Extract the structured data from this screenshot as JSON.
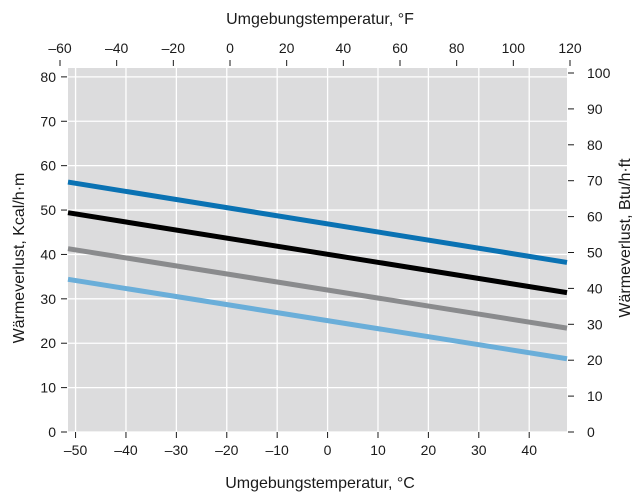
{
  "chart_data": {
    "type": "line",
    "title": "",
    "xlabel": "Umgebungstemperatur, °C",
    "xlabel_top": "Umgebungstemperatur, °F",
    "ylabel": "Wärmeverlust, Kcal/h·m",
    "ylabel_right": "Wärmeverlust, Btu/h·ft",
    "xlim": [
      -51.5,
      47.5
    ],
    "ylim": [
      0,
      82
    ],
    "xlim_top": [
      -60,
      120
    ],
    "ylim_right": [
      0,
      100
    ],
    "x_ticks": [
      -50,
      -40,
      -30,
      -20,
      -10,
      0,
      10,
      20,
      30,
      40
    ],
    "y_ticks": [
      0,
      10,
      20,
      30,
      40,
      50,
      60,
      70,
      80
    ],
    "x_ticks_top": [
      -60,
      -40,
      -20,
      0,
      20,
      40,
      60,
      80,
      100,
      120
    ],
    "y_ticks_right": [
      0,
      10,
      20,
      30,
      40,
      50,
      60,
      70,
      80,
      90,
      100
    ],
    "x_tick_labels": [
      "–50",
      "–40",
      "–30",
      "–20",
      "–10",
      "0",
      "10",
      "20",
      "30",
      "40"
    ],
    "y_tick_labels": [
      "0",
      "10",
      "20",
      "30",
      "40",
      "50",
      "60",
      "70",
      "80"
    ],
    "x_tick_labels_top": [
      "–60",
      "–40",
      "–20",
      "0",
      "20",
      "40",
      "60",
      "80",
      "100",
      "120"
    ],
    "y_tick_labels_right": [
      "0",
      "10",
      "20",
      "30",
      "40",
      "50",
      "60",
      "70",
      "80",
      "90",
      "100"
    ],
    "grid": true,
    "plot_background": "#dcdcdd",
    "grid_color": "#ffffff",
    "series": [
      {
        "color": "#0a72b3",
        "x": [
          -51.5,
          47.5
        ],
        "y": [
          56.3,
          38.2
        ]
      },
      {
        "color": "#000000",
        "x": [
          -51.5,
          47.5
        ],
        "y": [
          49.4,
          31.4
        ]
      },
      {
        "color": "#8a8b8d",
        "x": [
          -51.5,
          47.5
        ],
        "y": [
          41.3,
          23.4
        ]
      },
      {
        "color": "#6aaed9",
        "x": [
          -51.5,
          47.5
        ],
        "y": [
          34.4,
          16.5
        ]
      }
    ]
  }
}
